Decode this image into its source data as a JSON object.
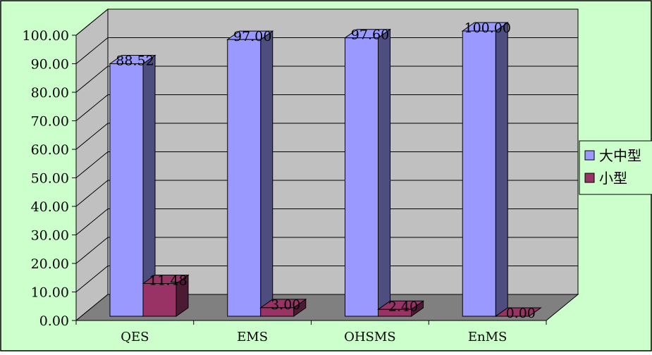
{
  "colors": {
    "background": "#CCFFCC",
    "wall": "#C0C0C0",
    "floor": "#808080",
    "series_large_front": "#9999FF",
    "series_large_side": "#4D4D80",
    "series_small_front": "#993366",
    "series_small_side": "#4D1A33"
  },
  "chart_data": {
    "type": "bar",
    "title": "",
    "xlabel": "",
    "ylabel": "",
    "categories": [
      "QES",
      "EMS",
      "OHSMS",
      "EnMS"
    ],
    "series": [
      {
        "name": "大中型",
        "values": [
          88.52,
          97.0,
          97.6,
          100.0
        ],
        "labels": [
          "88.52",
          "97.00",
          "97.60",
          "100.00"
        ]
      },
      {
        "name": "小型",
        "values": [
          11.48,
          3.0,
          2.4,
          0.0
        ],
        "labels": [
          "11.48",
          "3.00",
          "2.40",
          "0.00"
        ]
      }
    ],
    "ylim": [
      0,
      100
    ],
    "yticks": [
      "0.00",
      "10.00",
      "20.00",
      "30.00",
      "40.00",
      "50.00",
      "60.00",
      "70.00",
      "80.00",
      "90.00",
      "100.00"
    ],
    "grid": true,
    "legend_position": "right",
    "three_d": true
  }
}
